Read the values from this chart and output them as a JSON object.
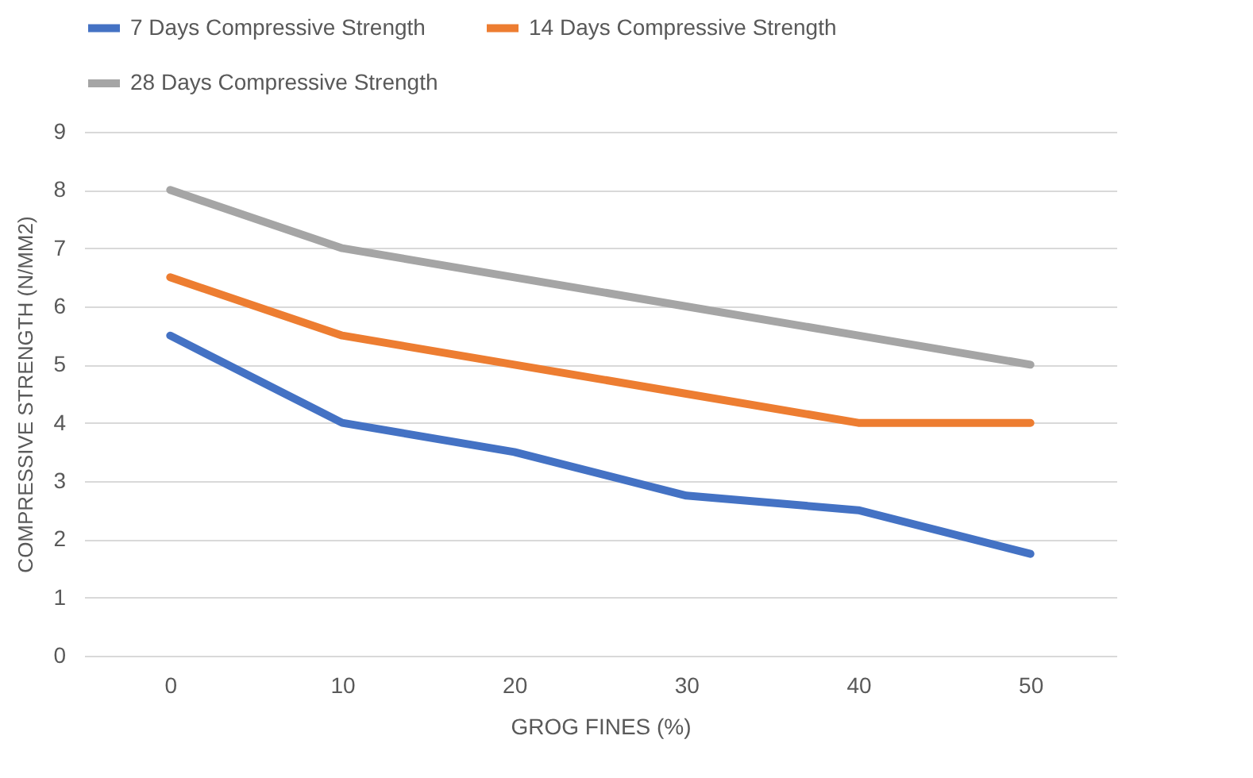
{
  "chart_data": {
    "type": "line",
    "xlabel": "GROG FINES (%)",
    "ylabel": "COMPRESSIVE STRENGTH (N/MM2)",
    "categories": [
      "0",
      "10",
      "20",
      "30",
      "40",
      "50"
    ],
    "series": [
      {
        "name": "7 Days Compressive Strength",
        "color": "#4472c4",
        "values": [
          5.5,
          4,
          3.5,
          2.75,
          2.5,
          1.75
        ]
      },
      {
        "name": "14 Days Compressive Strength",
        "color": "#ed7d31",
        "values": [
          6.5,
          5.5,
          5,
          4.5,
          4,
          4
        ]
      },
      {
        "name": "28 Days Compressive Strength",
        "color": "#a5a5a5",
        "values": [
          8,
          7,
          6.5,
          6,
          5.5,
          5
        ]
      }
    ],
    "ylim": [
      0,
      9
    ],
    "yticks": [
      0,
      1,
      2,
      3,
      4,
      5,
      6,
      7,
      8,
      9
    ],
    "grid": true,
    "legend": "top left",
    "marker": "none",
    "line_style": "solid"
  }
}
